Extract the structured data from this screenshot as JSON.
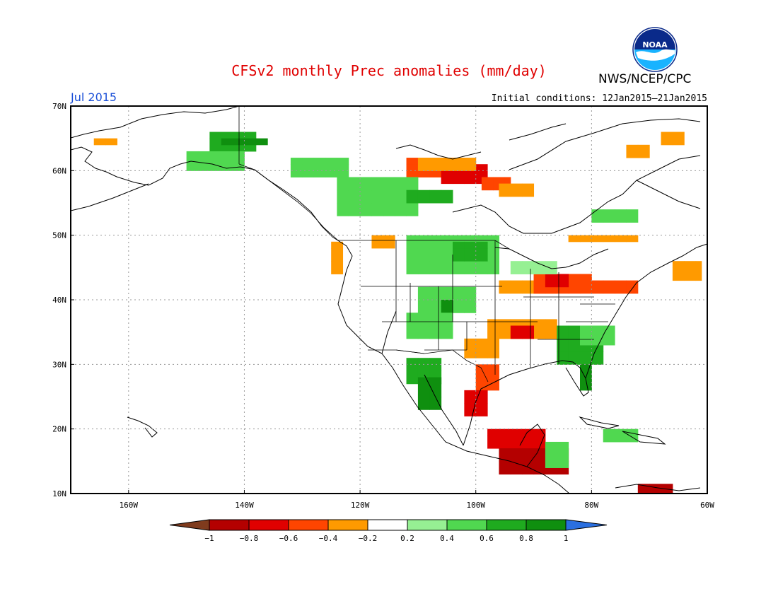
{
  "title": "CFSv2 monthly Prec anomalies (mm/day)",
  "agency": "NWS/NCEP/CPC",
  "logo_text": "NOAA",
  "valid_month": "Jul 2015",
  "initial_conditions": "Initial conditions: 12Jan2015–21Jan2015",
  "map": {
    "lon_range": [
      -170,
      -60
    ],
    "lat_range": [
      10,
      70
    ],
    "lat_labels": [
      {
        "lat": 70,
        "text": "70N"
      },
      {
        "lat": 60,
        "text": "60N"
      },
      {
        "lat": 50,
        "text": "50N"
      },
      {
        "lat": 40,
        "text": "40N"
      },
      {
        "lat": 30,
        "text": "30N"
      },
      {
        "lat": 20,
        "text": "20N"
      },
      {
        "lat": 10,
        "text": "10N"
      }
    ],
    "lon_labels": [
      {
        "lon": -160,
        "text": "160W"
      },
      {
        "lon": -140,
        "text": "140W"
      },
      {
        "lon": -120,
        "text": "120W"
      },
      {
        "lon": -100,
        "text": "100W"
      },
      {
        "lon": -80,
        "text": "80W"
      },
      {
        "lon": -60,
        "text": "60W"
      }
    ],
    "anomaly_cells_note_free": true,
    "anomaly_regions": [
      {
        "lon": [
          -112,
          -102
        ],
        "lat": [
          59,
          62
        ],
        "value": -0.5
      },
      {
        "lon": [
          -106,
          -98
        ],
        "lat": [
          58,
          61
        ],
        "value": -0.7
      },
      {
        "lon": [
          -110,
          -100
        ],
        "lat": [
          60,
          62
        ],
        "value": -0.4
      },
      {
        "lon": [
          -99,
          -94
        ],
        "lat": [
          57,
          59
        ],
        "value": -0.5
      },
      {
        "lon": [
          -96,
          -90
        ],
        "lat": [
          56,
          58
        ],
        "value": -0.4
      },
      {
        "lon": [
          -84,
          -72
        ],
        "lat": [
          49,
          50
        ],
        "value": -0.4
      },
      {
        "lon": [
          -74,
          -70
        ],
        "lat": [
          62,
          64
        ],
        "value": -0.4
      },
      {
        "lon": [
          -68,
          -64
        ],
        "lat": [
          64,
          66
        ],
        "value": -0.4
      },
      {
        "lon": [
          -96,
          -86
        ],
        "lat": [
          41,
          43
        ],
        "value": -0.4
      },
      {
        "lon": [
          -90,
          -80
        ],
        "lat": [
          41,
          44
        ],
        "value": -0.6
      },
      {
        "lon": [
          -88,
          -84
        ],
        "lat": [
          42,
          44
        ],
        "value": -0.8
      },
      {
        "lon": [
          -80,
          -72
        ],
        "lat": [
          41,
          43
        ],
        "value": -0.5
      },
      {
        "lon": [
          -66,
          -61
        ],
        "lat": [
          43,
          46
        ],
        "value": -0.4
      },
      {
        "lon": [
          -98,
          -86
        ],
        "lat": [
          34,
          37
        ],
        "value": -0.4
      },
      {
        "lon": [
          -94,
          -90
        ],
        "lat": [
          34,
          36
        ],
        "value": -0.8
      },
      {
        "lon": [
          -102,
          -96
        ],
        "lat": [
          31,
          34
        ],
        "value": -0.4
      },
      {
        "lon": [
          -100,
          -96
        ],
        "lat": [
          26,
          30
        ],
        "value": -0.5
      },
      {
        "lon": [
          -102,
          -98
        ],
        "lat": [
          22,
          26
        ],
        "value": -0.7
      },
      {
        "lon": [
          -98,
          -88
        ],
        "lat": [
          17,
          20
        ],
        "value": -0.7
      },
      {
        "lon": [
          -96,
          -84
        ],
        "lat": [
          13,
          17
        ],
        "value": -1.0
      },
      {
        "lon": [
          -72,
          -66
        ],
        "lat": [
          10,
          11.5
        ],
        "value": -0.9
      },
      {
        "lon": [
          -125,
          -123
        ],
        "lat": [
          44,
          49
        ],
        "value": -0.4
      },
      {
        "lon": [
          -118,
          -114
        ],
        "lat": [
          48,
          50
        ],
        "value": -0.4
      },
      {
        "lon": [
          -166,
          -162
        ],
        "lat": [
          64,
          65
        ],
        "value": -0.4
      },
      {
        "lon": [
          -146,
          -138
        ],
        "lat": [
          63,
          66
        ],
        "value": 0.6
      },
      {
        "lon": [
          -144,
          -136
        ],
        "lat": [
          64,
          65
        ],
        "value": 0.8
      },
      {
        "lon": [
          -150,
          -140
        ],
        "lat": [
          60,
          63
        ],
        "value": 0.4
      },
      {
        "lon": [
          -132,
          -122
        ],
        "lat": [
          59,
          62
        ],
        "value": 0.4
      },
      {
        "lon": [
          -124,
          -110
        ],
        "lat": [
          53,
          59
        ],
        "value": 0.4
      },
      {
        "lon": [
          -112,
          -104
        ],
        "lat": [
          55,
          57
        ],
        "value": 0.6
      },
      {
        "lon": [
          -112,
          -96
        ],
        "lat": [
          44,
          50
        ],
        "value": 0.4
      },
      {
        "lon": [
          -104,
          -98
        ],
        "lat": [
          46,
          49
        ],
        "value": 0.6
      },
      {
        "lon": [
          -110,
          -100
        ],
        "lat": [
          38,
          42
        ],
        "value": 0.5
      },
      {
        "lon": [
          -106,
          -104
        ],
        "lat": [
          37,
          40
        ],
        "value": 0.9
      },
      {
        "lon": [
          -112,
          -104
        ],
        "lat": [
          34,
          38
        ],
        "value": 0.4
      },
      {
        "lon": [
          -112,
          -106
        ],
        "lat": [
          27,
          31
        ],
        "value": 0.6
      },
      {
        "lon": [
          -110,
          -106
        ],
        "lat": [
          23,
          28
        ],
        "value": 0.9
      },
      {
        "lon": [
          -86,
          -78
        ],
        "lat": [
          30,
          36
        ],
        "value": 0.6
      },
      {
        "lon": [
          -82,
          -80
        ],
        "lat": [
          26,
          30
        ],
        "value": 0.8
      },
      {
        "lon": [
          -82,
          -76
        ],
        "lat": [
          33,
          36
        ],
        "value": 0.5
      },
      {
        "lon": [
          -78,
          -72
        ],
        "lat": [
          18,
          20
        ],
        "value": 0.4
      },
      {
        "lon": [
          -94,
          -86
        ],
        "lat": [
          44,
          46
        ],
        "value": 0.3
      },
      {
        "lon": [
          -80,
          -72
        ],
        "lat": [
          52,
          54
        ],
        "value": 0.4
      },
      {
        "lon": [
          -88,
          -84
        ],
        "lat": [
          14,
          18
        ],
        "value": 0.5
      }
    ]
  },
  "colorbar": {
    "colors": [
      "#7f3b1d",
      "#b40000",
      "#e00000",
      "#ff4500",
      "#ff9a00",
      "#ffffff",
      "#96f093",
      "#50d850",
      "#1fab1f",
      "#0f8f0f",
      "#2a6fe0"
    ],
    "tick_labels": [
      "−1",
      "−0.8",
      "−0.6",
      "−0.4",
      "−0.2",
      "0.2",
      "0.4",
      "0.6",
      "0.8",
      "1"
    ]
  }
}
